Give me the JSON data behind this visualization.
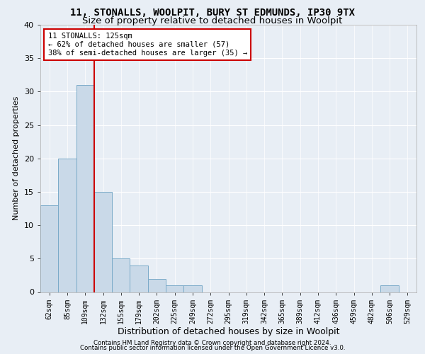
{
  "title_line1": "11, STONALLS, WOOLPIT, BURY ST EDMUNDS, IP30 9TX",
  "title_line2": "Size of property relative to detached houses in Woolpit",
  "xlabel": "Distribution of detached houses by size in Woolpit",
  "ylabel": "Number of detached properties",
  "footer_line1": "Contains HM Land Registry data © Crown copyright and database right 2024.",
  "footer_line2": "Contains public sector information licensed under the Open Government Licence v3.0.",
  "bar_labels": [
    "62sqm",
    "85sqm",
    "109sqm",
    "132sqm",
    "155sqm",
    "179sqm",
    "202sqm",
    "225sqm",
    "249sqm",
    "272sqm",
    "295sqm",
    "319sqm",
    "342sqm",
    "365sqm",
    "389sqm",
    "412sqm",
    "436sqm",
    "459sqm",
    "482sqm",
    "506sqm",
    "529sqm"
  ],
  "bar_values": [
    13,
    20,
    31,
    15,
    5,
    4,
    2,
    1,
    1,
    0,
    0,
    0,
    0,
    0,
    0,
    0,
    0,
    0,
    0,
    1,
    0
  ],
  "bar_color": "#c9d9e8",
  "bar_edge_color": "#7aaac8",
  "vline_x_index": 2.5,
  "vline_color": "#cc0000",
  "annotation_text": "11 STONALLS: 125sqm\n← 62% of detached houses are smaller (57)\n38% of semi-detached houses are larger (35) →",
  "annotation_box_facecolor": "#ffffff",
  "annotation_box_edgecolor": "#cc0000",
  "ylim": [
    0,
    40
  ],
  "yticks": [
    0,
    5,
    10,
    15,
    20,
    25,
    30,
    35,
    40
  ],
  "bg_color": "#e8eef5",
  "title_fontsize": 10,
  "subtitle_fontsize": 9.5,
  "ylabel_fontsize": 8,
  "xlabel_fontsize": 9,
  "tick_fontsize": 7,
  "annotation_fontsize": 7.5,
  "footer_fontsize": 6.2
}
